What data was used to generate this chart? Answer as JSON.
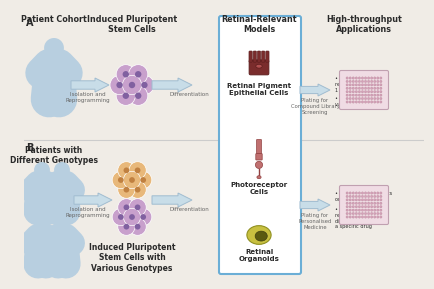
{
  "bg_color": "#f0ece6",
  "white": "#ffffff",
  "panel_A_label": "A",
  "panel_B_label": "B",
  "col1_title_A": "Patient Cohort",
  "col2_title": "Induced Pluripotent\nStem Cells",
  "col3_title": "Retinal-Relevant\nModels",
  "col4_title": "High-throughput\nApplications",
  "col1_title_B": "Patients with\nDifferent Genotypes",
  "col2_title_B": "Induced Pluripotent\nStem Cells with\nVarious Genotypes",
  "arrow1A_label": "Isolation and\nReprogramming",
  "arrow2A_label": "Differentiation",
  "arrow3A_label": "Plating for\nCompound Library\nScreening",
  "arrow1B_label": "Isolation and\nReprogramming",
  "arrow2B_label": "Differentiation",
  "arrow3B_label": "Plating for\nPersonalised\nMedicine",
  "rpe_label": "Retinal Pigment\nEpithelial Cells",
  "photo_label": "Photoreceptor\nCells",
  "organoid_label": "Retinal\nOrganoids",
  "bullet_A1": "Plate of validated\nretinal model with\n1 genotype",
  "bullet_A2": "Used to screen\nvarious compounds",
  "bullet_B1": "Each well represents\none patient",
  "bullet_B2": "Used to assess the\nresponses of\ndifferent patients to\na specific drug",
  "human_color": "#b8cfe0",
  "ipsc_A_color": "#c8a0cc",
  "ipsc_A_inner": "#8060a0",
  "ipsc_B1_color": "#e8b87a",
  "ipsc_B1_inner": "#c08040",
  "ipsc_B2_color": "#c8a0cc",
  "ipsc_B2_inner": "#8060a0",
  "arrow_fill": "#c8dde8",
  "arrow_edge": "#a0bcd0",
  "box_edge": "#6baed6",
  "box_fill": "#ffffff",
  "rpe_color": "#7a2c2c",
  "rpe_dark": "#5a1c1c",
  "photo_color": "#c07070",
  "photo_dark": "#904040",
  "organoid_outer": "#c8c040",
  "organoid_inner": "#606010",
  "plate_bg": "#f0dce4",
  "plate_edge": "#c0a0b0",
  "well_color": "#d4a0b8",
  "well_edge": "#b08090",
  "text_dark": "#2a2a2a",
  "text_mid": "#444444",
  "text_light": "#666666"
}
